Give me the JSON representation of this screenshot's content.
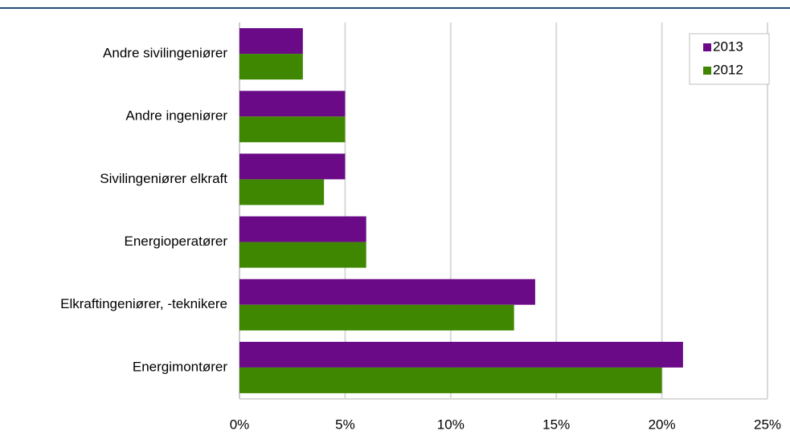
{
  "chart_data": {
    "type": "bar",
    "orientation": "horizontal",
    "categories": [
      "Andre sivilingeniører",
      "Andre ingeniører",
      "Sivilingeniører elkraft",
      "Energioperatører",
      "Elkraftingeniører,  -teknikere",
      "Energimontører"
    ],
    "series": [
      {
        "name": "2013",
        "color": "#6a0a86",
        "values": [
          3,
          5,
          5,
          6,
          14,
          21
        ]
      },
      {
        "name": "2012",
        "color": "#3f8700",
        "values": [
          3,
          5,
          4,
          6,
          13,
          20
        ]
      }
    ],
    "xlim": [
      0,
      25
    ],
    "xticks": [
      {
        "value": 0,
        "label": "0%"
      },
      {
        "value": 5,
        "label": "5%"
      },
      {
        "value": 10,
        "label": "10%"
      },
      {
        "value": 15,
        "label": "15%"
      },
      {
        "value": 20,
        "label": "20%"
      },
      {
        "value": 25,
        "label": "25%"
      }
    ],
    "grid": true,
    "legend": "upper right"
  }
}
